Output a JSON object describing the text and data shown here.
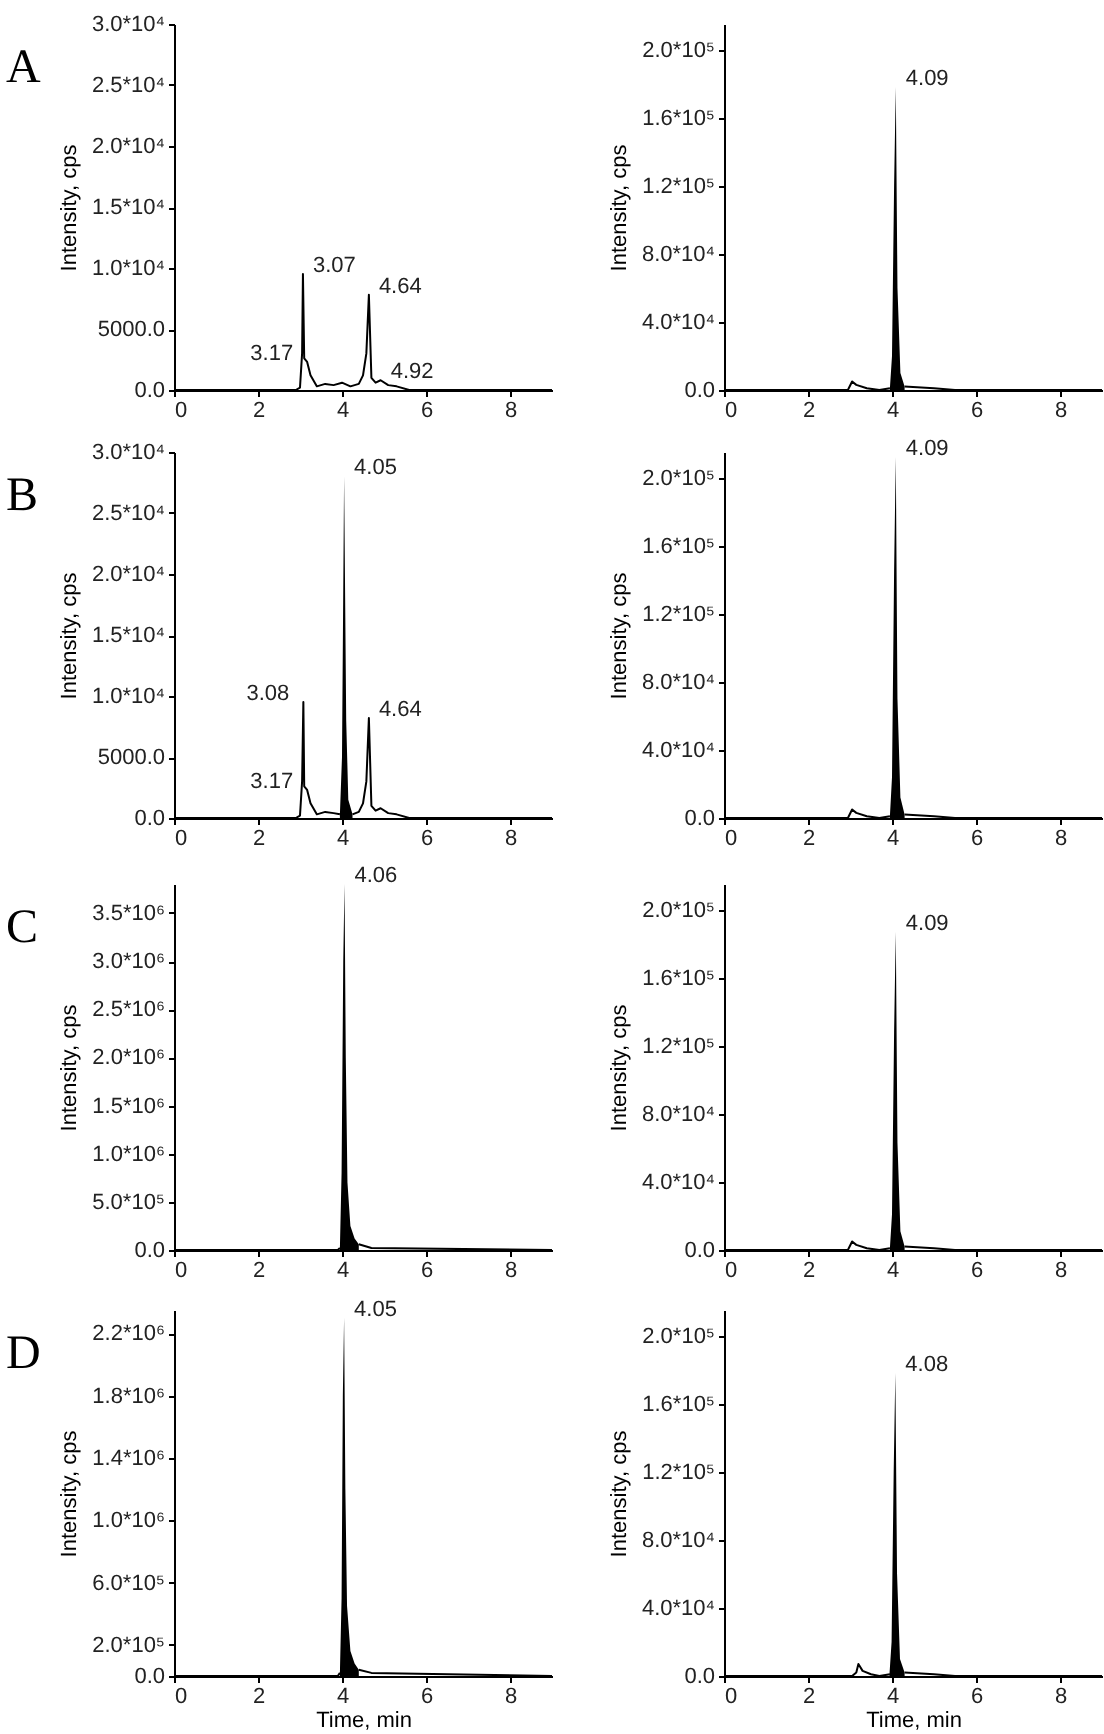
{
  "chart_data": [
    {
      "type": "line",
      "title": "A",
      "ylabel": "Intensity, cps",
      "xlim": [
        0,
        9
      ],
      "xticks": [
        0,
        2,
        4,
        6,
        8
      ],
      "ylim": [
        0,
        30000
      ],
      "yticks": [
        {
          "value": 0,
          "label": "0.0"
        },
        {
          "value": 5000,
          "label": "5000.0"
        },
        {
          "value": 10000,
          "label": "1.0*10⁴"
        },
        {
          "value": 15000,
          "label": "1.5*10⁴"
        },
        {
          "value": 20000,
          "label": "2.0*10⁴"
        },
        {
          "value": 25000,
          "label": "2.5*10⁴"
        },
        {
          "value": 30000,
          "label": "3.0*10⁴"
        }
      ],
      "series": [
        {
          "color": "#000000",
          "x": [
            0,
            2.9,
            3.0,
            3.05,
            3.07,
            3.1,
            3.17,
            3.25,
            3.4,
            3.6,
            3.8,
            4.0,
            4.2,
            4.4,
            4.5,
            4.58,
            4.64,
            4.7,
            4.8,
            4.92,
            5.1,
            5.3,
            5.6,
            6,
            9
          ],
          "values": [
            0,
            0,
            200,
            3000,
            9500,
            2600,
            2300,
            1200,
            300,
            500,
            400,
            600,
            300,
            500,
            1200,
            3000,
            7800,
            1000,
            600,
            800,
            400,
            300,
            0,
            0,
            0
          ]
        }
      ],
      "annotations": [
        {
          "text": "3.07",
          "x": 3.07,
          "y": 9500
        },
        {
          "text": "3.17",
          "x": 3.17,
          "y": 2300
        },
        {
          "text": "4.64",
          "x": 4.64,
          "y": 7800
        },
        {
          "text": "4.92",
          "x": 4.92,
          "y": 800
        }
      ]
    },
    {
      "type": "line",
      "ylabel": "Intensity, cps",
      "xlim": [
        0,
        9
      ],
      "xticks": [
        0,
        2,
        4,
        6,
        8
      ],
      "ylim": [
        0,
        215000
      ],
      "yticks": [
        {
          "value": 0,
          "label": "0.0"
        },
        {
          "value": 40000,
          "label": "4.0*10⁴"
        },
        {
          "value": 80000,
          "label": "8.0*10⁴"
        },
        {
          "value": 120000,
          "label": "1.2*10⁵"
        },
        {
          "value": 160000,
          "label": "1.6*10⁵"
        },
        {
          "value": 200000,
          "label": "2.0*10⁵"
        }
      ],
      "series": [
        {
          "color": "#000000",
          "x": [
            0,
            2.95,
            3.05,
            3.15,
            3.4,
            3.7,
            3.95,
            4.09,
            4.3,
            5,
            5.5,
            9
          ],
          "values": [
            0,
            0,
            5000,
            3000,
            1000,
            0,
            1000,
            null,
            2000,
            1000,
            0,
            0
          ]
        },
        {
          "type": "area",
          "color": "#000000",
          "x": [
            3.95,
            4.0,
            4.05,
            4.09,
            4.13,
            4.2,
            4.3
          ],
          "values": [
            1000,
            20000,
            120000,
            178000,
            60000,
            10000,
            2000
          ]
        }
      ],
      "annotations": [
        {
          "text": "4.09",
          "x": 4.09,
          "y": 178000
        }
      ]
    },
    {
      "type": "line",
      "title": "B",
      "ylabel": "Intensity, cps",
      "xlim": [
        0,
        9
      ],
      "xticks": [
        0,
        2,
        4,
        6,
        8
      ],
      "ylim": [
        0,
        30000
      ],
      "yticks": [
        {
          "value": 0,
          "label": "0.0"
        },
        {
          "value": 5000,
          "label": "5000.0"
        },
        {
          "value": 10000,
          "label": "1.0*10⁴"
        },
        {
          "value": 15000,
          "label": "1.5*10⁴"
        },
        {
          "value": 20000,
          "label": "2.0*10⁴"
        },
        {
          "value": 25000,
          "label": "2.5*10⁴"
        },
        {
          "value": 30000,
          "label": "3.0*10⁴"
        }
      ],
      "series": [
        {
          "color": "#000000",
          "x": [
            0,
            2.9,
            3.0,
            3.05,
            3.08,
            3.1,
            3.17,
            3.25,
            3.4,
            3.6,
            3.8,
            3.95,
            4.05,
            4.25,
            4.4,
            4.5,
            4.58,
            4.64,
            4.7,
            4.8,
            4.92,
            5.1,
            5.3,
            5.6,
            6,
            9
          ],
          "values": [
            0,
            0,
            200,
            3000,
            9500,
            2600,
            2300,
            1200,
            300,
            500,
            400,
            300,
            null,
            300,
            500,
            1200,
            3000,
            8200,
            1000,
            600,
            800,
            400,
            300,
            0,
            0,
            0
          ]
        },
        {
          "type": "area",
          "color": "#000000",
          "x": [
            3.95,
            4.0,
            4.05,
            4.1,
            4.15,
            4.25
          ],
          "values": [
            300,
            5000,
            28000,
            8000,
            1500,
            300
          ]
        }
      ],
      "annotations": [
        {
          "text": "3.08",
          "x": 3.08,
          "y": 9500
        },
        {
          "text": "3.17",
          "x": 3.17,
          "y": 2300
        },
        {
          "text": "4.05",
          "x": 4.05,
          "y": 28000
        },
        {
          "text": "4.64",
          "x": 4.64,
          "y": 8200
        }
      ]
    },
    {
      "type": "line",
      "ylabel": "Intensity, cps",
      "xlim": [
        0,
        9
      ],
      "xticks": [
        0,
        2,
        4,
        6,
        8
      ],
      "ylim": [
        0,
        215000
      ],
      "yticks": [
        {
          "value": 0,
          "label": "0.0"
        },
        {
          "value": 40000,
          "label": "4.0*10⁴"
        },
        {
          "value": 80000,
          "label": "8.0*10⁴"
        },
        {
          "value": 120000,
          "label": "1.2*10⁵"
        },
        {
          "value": 160000,
          "label": "1.6*10⁵"
        },
        {
          "value": 200000,
          "label": "2.0*10⁵"
        }
      ],
      "series": [
        {
          "color": "#000000",
          "x": [
            0,
            2.95,
            3.05,
            3.15,
            3.4,
            3.7,
            3.95,
            4.09,
            4.3,
            5,
            5.5,
            9
          ],
          "values": [
            0,
            0,
            5000,
            3000,
            1000,
            0,
            1000,
            null,
            2000,
            1000,
            0,
            0
          ]
        },
        {
          "type": "area",
          "color": "#000000",
          "x": [
            3.95,
            4.0,
            4.05,
            4.09,
            4.13,
            4.2,
            4.3
          ],
          "values": [
            1000,
            24000,
            145000,
            212000,
            70000,
            12000,
            2000
          ]
        }
      ],
      "annotations": [
        {
          "text": "4.09",
          "x": 4.09,
          "y": 212000
        }
      ]
    },
    {
      "type": "line",
      "title": "C",
      "ylabel": "Intensity, cps",
      "xlim": [
        0,
        9
      ],
      "xticks": [
        0,
        2,
        4,
        6,
        8
      ],
      "ylim": [
        0,
        3800000
      ],
      "yticks": [
        {
          "value": 0,
          "label": "0.0"
        },
        {
          "value": 500000,
          "label": "5.0*10⁵"
        },
        {
          "value": 1000000,
          "label": "1.0*10⁶"
        },
        {
          "value": 1500000,
          "label": "1.5*10⁶"
        },
        {
          "value": 2000000,
          "label": "2.0*10⁶"
        },
        {
          "value": 2500000,
          "label": "2.5*10⁶"
        },
        {
          "value": 3000000,
          "label": "3.0*10⁶"
        },
        {
          "value": 3500000,
          "label": "3.5*10⁶"
        }
      ],
      "series": [
        {
          "color": "#000000",
          "x": [
            0,
            3.9,
            3.95,
            4.06,
            4.4,
            4.7,
            9
          ],
          "values": [
            0,
            0,
            20000,
            null,
            60000,
            20000,
            0
          ]
        },
        {
          "type": "area",
          "color": "#000000",
          "x": [
            3.95,
            3.99,
            4.03,
            4.06,
            4.09,
            4.13,
            4.2,
            4.3,
            4.4
          ],
          "values": [
            20000,
            800000,
            3000000,
            3800000,
            2000000,
            700000,
            250000,
            120000,
            60000
          ]
        }
      ],
      "annotations": [
        {
          "text": "4.06",
          "x": 4.06,
          "y": 3800000
        }
      ]
    },
    {
      "type": "line",
      "ylabel": "Intensity, cps",
      "xlim": [
        0,
        9
      ],
      "xticks": [
        0,
        2,
        4,
        6,
        8
      ],
      "ylim": [
        0,
        215000
      ],
      "yticks": [
        {
          "value": 0,
          "label": "0.0"
        },
        {
          "value": 40000,
          "label": "4.0*10⁴"
        },
        {
          "value": 80000,
          "label": "8.0*10⁴"
        },
        {
          "value": 120000,
          "label": "1.2*10⁵"
        },
        {
          "value": 160000,
          "label": "1.6*10⁵"
        },
        {
          "value": 200000,
          "label": "2.0*10⁵"
        }
      ],
      "series": [
        {
          "color": "#000000",
          "x": [
            0,
            2.95,
            3.05,
            3.15,
            3.4,
            3.7,
            3.95,
            4.09,
            4.3,
            5,
            5.5,
            9
          ],
          "values": [
            0,
            0,
            5000,
            3000,
            1000,
            0,
            1000,
            null,
            2000,
            1000,
            0,
            0
          ]
        },
        {
          "type": "area",
          "color": "#000000",
          "x": [
            3.95,
            4.0,
            4.05,
            4.09,
            4.13,
            4.2,
            4.3
          ],
          "values": [
            1000,
            21000,
            128000,
            187000,
            63000,
            11000,
            2000
          ]
        }
      ],
      "annotations": [
        {
          "text": "4.09",
          "x": 4.09,
          "y": 187000
        }
      ]
    },
    {
      "type": "line",
      "title": "D",
      "xlabel": "Time, min",
      "ylabel": "Intensity, cps",
      "xlim": [
        0,
        9
      ],
      "xticks": [
        0,
        2,
        4,
        6,
        8
      ],
      "ylim": [
        0,
        2350000
      ],
      "yticks": [
        {
          "value": 0,
          "label": "0.0"
        },
        {
          "value": 200000,
          "label": "2.0*10⁵"
        },
        {
          "value": 600000,
          "label": "6.0*10⁵"
        },
        {
          "value": 1000000,
          "label": "1.0*10⁶"
        },
        {
          "value": 1400000,
          "label": "1.4*10⁶"
        },
        {
          "value": 1800000,
          "label": "1.8*10⁶"
        },
        {
          "value": 2200000,
          "label": "2.2*10⁶"
        }
      ],
      "series": [
        {
          "color": "#000000",
          "x": [
            0,
            3.9,
            3.95,
            4.05,
            4.4,
            4.7,
            9
          ],
          "values": [
            0,
            0,
            20000,
            null,
            40000,
            20000,
            0
          ]
        },
        {
          "type": "area",
          "color": "#000000",
          "x": [
            3.95,
            3.99,
            4.02,
            4.05,
            4.08,
            4.12,
            4.2,
            4.3,
            4.4
          ],
          "values": [
            20000,
            500000,
            1800000,
            2300000,
            1200000,
            450000,
            160000,
            80000,
            40000
          ]
        }
      ],
      "annotations": [
        {
          "text": "4.05",
          "x": 4.05,
          "y": 2300000
        }
      ]
    },
    {
      "type": "line",
      "xlabel": "Time, min",
      "ylabel": "Intensity, cps",
      "xlim": [
        0,
        9
      ],
      "xticks": [
        0,
        2,
        4,
        6,
        8
      ],
      "ylim": [
        0,
        215000
      ],
      "yticks": [
        {
          "value": 0,
          "label": "0.0"
        },
        {
          "value": 40000,
          "label": "4.0*10⁴"
        },
        {
          "value": 80000,
          "label": "8.0*10⁴"
        },
        {
          "value": 120000,
          "label": "1.2*10⁵"
        },
        {
          "value": 160000,
          "label": "1.6*10⁵"
        },
        {
          "value": 200000,
          "label": "2.0*10⁵"
        }
      ],
      "series": [
        {
          "color": "#000000",
          "x": [
            0,
            3.05,
            3.15,
            3.2,
            3.3,
            3.5,
            3.7,
            3.95,
            4.08,
            4.3,
            5,
            5.5,
            9
          ],
          "values": [
            0,
            0,
            2000,
            7000,
            3000,
            1000,
            0,
            1000,
            null,
            2000,
            1000,
            0,
            0
          ]
        },
        {
          "type": "area",
          "color": "#000000",
          "x": [
            3.94,
            3.99,
            4.04,
            4.08,
            4.12,
            4.19,
            4.3
          ],
          "values": [
            1000,
            20000,
            120000,
            178000,
            60000,
            10000,
            2000
          ]
        }
      ],
      "annotations": [
        {
          "text": "4.08",
          "x": 4.08,
          "y": 178000
        }
      ]
    }
  ]
}
